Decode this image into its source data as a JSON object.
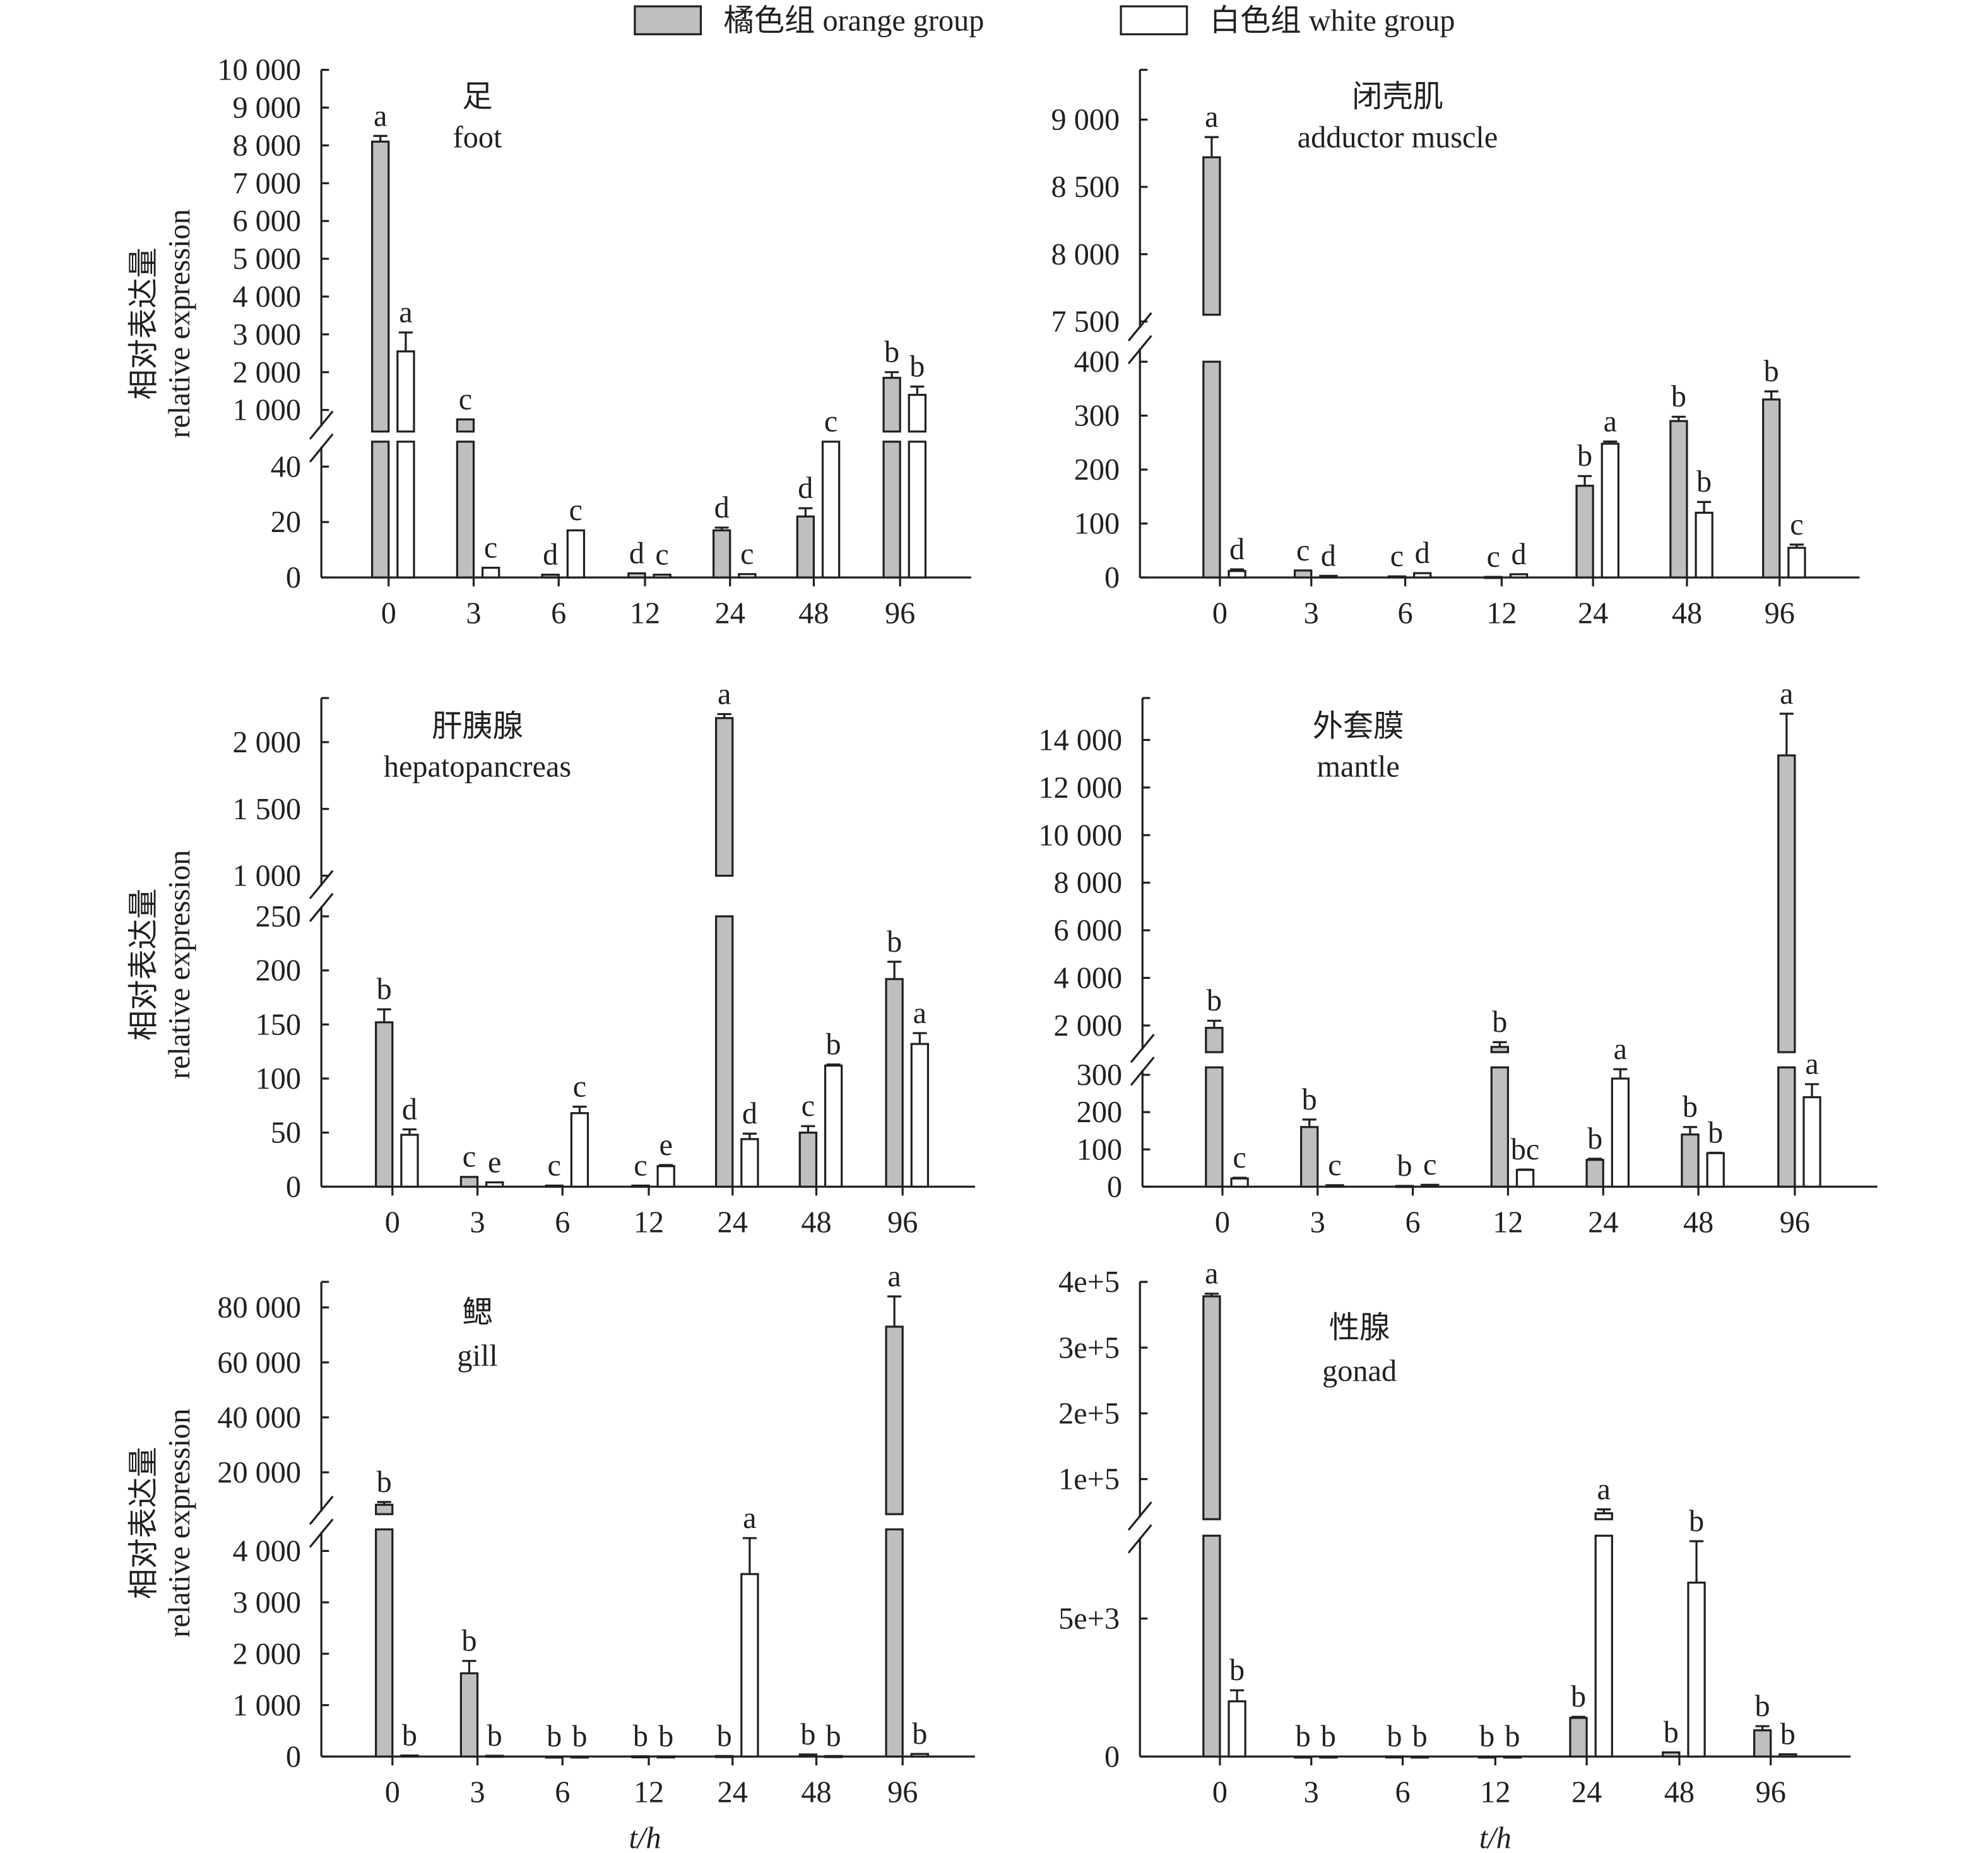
{
  "legend": {
    "orange": "橘色组 orange group",
    "white": "白色组 white group"
  },
  "colors": {
    "orange": "#bfbfbf",
    "white": "#ffffff",
    "ink": "#231f20"
  },
  "ylabel_cn": "相对表达量",
  "ylabel_en": "relative expression",
  "xlabel": "t/h",
  "chart_data": [
    {
      "type": "bar",
      "id": "foot",
      "title_cn": "足",
      "title_en": "foot",
      "categories": [
        "0",
        "3",
        "6",
        "12",
        "24",
        "48",
        "96"
      ],
      "axis_break": true,
      "lower_ylim": [
        0,
        49
      ],
      "upper_ylim": [
        430,
        10000
      ],
      "lower_ticks": [
        {
          "v": 0,
          "label": "0"
        },
        {
          "v": 20,
          "label": "20"
        },
        {
          "v": 40,
          "label": "40"
        }
      ],
      "upper_ticks": [
        {
          "v": 1000,
          "label": "1 000"
        },
        {
          "v": 2000,
          "label": "2 000"
        },
        {
          "v": 3000,
          "label": "3 000"
        },
        {
          "v": 4000,
          "label": "4 000"
        },
        {
          "v": 5000,
          "label": "5 000"
        },
        {
          "v": 6000,
          "label": "6 000"
        },
        {
          "v": 7000,
          "label": "7 000"
        },
        {
          "v": 8000,
          "label": "8 000"
        },
        {
          "v": 9000,
          "label": "9 000"
        },
        {
          "v": 10000,
          "label": "10 000"
        }
      ],
      "series": [
        {
          "name": "orange group",
          "values": [
            8100,
            750,
            1,
            1.5,
            17,
            22,
            1850
          ],
          "errors": [
            150,
            0,
            0,
            0,
            1,
            3,
            150
          ],
          "letters": [
            "a",
            "c",
            "d",
            "d",
            "d",
            "d",
            "b"
          ]
        },
        {
          "name": "white group",
          "values": [
            2550,
            3.5,
            17,
            1,
            1.2,
            49,
            1400
          ],
          "errors": [
            500,
            0,
            0,
            0,
            0,
            0,
            220
          ],
          "letters": [
            "a",
            "c",
            "c",
            "c",
            "c",
            "c",
            "b"
          ]
        }
      ]
    },
    {
      "type": "bar",
      "id": "adductor",
      "title_cn": "闭壳肌",
      "title_en": "adductor muscle",
      "categories": [
        "0",
        "3",
        "6",
        "12",
        "24",
        "48",
        "96"
      ],
      "axis_break": true,
      "lower_ylim": [
        0,
        400
      ],
      "upper_ylim": [
        7550,
        9370
      ],
      "lower_ticks": [
        {
          "v": 0,
          "label": "0"
        },
        {
          "v": 100,
          "label": "100"
        },
        {
          "v": 200,
          "label": "200"
        },
        {
          "v": 300,
          "label": "300"
        },
        {
          "v": 400,
          "label": "400"
        }
      ],
      "upper_ticks": [
        {
          "v": 7500,
          "label": "7 500"
        },
        {
          "v": 8000,
          "label": "8 000"
        },
        {
          "v": 8500,
          "label": "8 500"
        },
        {
          "v": 9000,
          "label": "9 000"
        }
      ],
      "series": [
        {
          "name": "orange group",
          "values": [
            8720,
            13,
            2,
            1,
            170,
            290,
            330
          ],
          "errors": [
            150,
            0,
            0,
            0,
            18,
            8,
            15
          ],
          "letters": [
            "a",
            "c",
            "c",
            "c",
            "b",
            "b",
            "b"
          ]
        },
        {
          "name": "white group",
          "values": [
            12,
            3,
            8,
            6,
            248,
            120,
            55
          ],
          "errors": [
            3,
            0,
            0,
            0,
            4,
            20,
            6
          ],
          "letters": [
            "d",
            "d",
            "d",
            "d",
            "a",
            "b",
            "c"
          ]
        }
      ]
    },
    {
      "type": "bar",
      "id": "hepatopancreas",
      "title_cn": "肝胰腺",
      "title_en": "hepatopancreas",
      "categories": [
        "0",
        "3",
        "6",
        "12",
        "24",
        "48",
        "96"
      ],
      "axis_break": true,
      "lower_ylim": [
        0,
        250
      ],
      "upper_ylim": [
        1000,
        2330
      ],
      "lower_ticks": [
        {
          "v": 0,
          "label": "0"
        },
        {
          "v": 50,
          "label": "50"
        },
        {
          "v": 100,
          "label": "100"
        },
        {
          "v": 150,
          "label": "150"
        },
        {
          "v": 200,
          "label": "200"
        },
        {
          "v": 250,
          "label": "250"
        }
      ],
      "upper_ticks": [
        {
          "v": 1000,
          "label": "1 000"
        },
        {
          "v": 1500,
          "label": "1 500"
        },
        {
          "v": 2000,
          "label": "2 000"
        }
      ],
      "series": [
        {
          "name": "orange group",
          "values": [
            152,
            9,
            1,
            1,
            2180,
            50,
            192
          ],
          "errors": [
            12,
            0,
            0,
            0,
            30,
            6,
            16
          ],
          "letters": [
            "b",
            "c",
            "c",
            "c",
            "a",
            "c",
            "b"
          ]
        },
        {
          "name": "white group",
          "values": [
            48,
            4,
            68,
            19,
            44,
            112,
            132
          ],
          "errors": [
            5,
            0,
            6,
            1,
            5,
            1,
            10
          ],
          "letters": [
            "d",
            "e",
            "c",
            "e",
            "d",
            "b",
            "a"
          ]
        }
      ]
    },
    {
      "type": "bar",
      "id": "mantle",
      "title_cn": "外套膜",
      "title_en": "mantle",
      "categories": [
        "0",
        "3",
        "6",
        "12",
        "24",
        "48",
        "96"
      ],
      "axis_break": true,
      "lower_ylim": [
        0,
        320
      ],
      "upper_ylim": [
        880,
        15760
      ],
      "lower_ticks": [
        {
          "v": 0,
          "label": "0"
        },
        {
          "v": 100,
          "label": "100"
        },
        {
          "v": 200,
          "label": "200"
        },
        {
          "v": 300,
          "label": "300"
        }
      ],
      "upper_ticks": [
        {
          "v": 2000,
          "label": "2 000"
        },
        {
          "v": 4000,
          "label": "4 000"
        },
        {
          "v": 6000,
          "label": "6 000"
        },
        {
          "v": 8000,
          "label": "8 000"
        },
        {
          "v": 10000,
          "label": "10 000"
        },
        {
          "v": 12000,
          "label": "12 000"
        },
        {
          "v": 14000,
          "label": "14 000"
        }
      ],
      "series": [
        {
          "name": "orange group",
          "values": [
            1900,
            160,
            2,
            1100,
            72,
            140,
            13350
          ],
          "errors": [
            300,
            20,
            0,
            200,
            3,
            20,
            1750
          ],
          "letters": [
            "b",
            "b",
            "b",
            "b",
            "b",
            "b",
            "a"
          ]
        },
        {
          "name": "white group",
          "values": [
            22,
            4,
            5,
            45,
            290,
            90,
            240
          ],
          "errors": [
            2,
            0,
            0,
            1,
            25,
            1,
            35
          ],
          "letters": [
            "c",
            "c",
            "c",
            "bc",
            "a",
            "b",
            "a"
          ]
        }
      ]
    },
    {
      "type": "bar",
      "id": "gill",
      "title_cn": "鳃",
      "title_en": "gill",
      "categories": [
        "0",
        "3",
        "6",
        "12",
        "24",
        "48",
        "96"
      ],
      "axis_break": true,
      "lower_ylim": [
        0,
        4420
      ],
      "upper_ylim": [
        4800,
        89300
      ],
      "lower_ticks": [
        {
          "v": 0,
          "label": "0"
        },
        {
          "v": 1000,
          "label": "1 000"
        },
        {
          "v": 2000,
          "label": "2 000"
        },
        {
          "v": 3000,
          "label": "3 000"
        },
        {
          "v": 4000,
          "label": "4 000"
        }
      ],
      "upper_ticks": [
        {
          "v": 20000,
          "label": "20 000"
        },
        {
          "v": 40000,
          "label": "40 000"
        },
        {
          "v": 60000,
          "label": "60 000"
        },
        {
          "v": 80000,
          "label": "80 000"
        }
      ],
      "series": [
        {
          "name": "orange group",
          "values": [
            8200,
            1620,
            1,
            5,
            10,
            40,
            73000
          ],
          "errors": [
            1000,
            240,
            0,
            0,
            0,
            0,
            11000
          ],
          "letters": [
            "b",
            "b",
            "b",
            "b",
            "b",
            "b",
            "a"
          ]
        },
        {
          "name": "white group",
          "values": [
            20,
            15,
            1,
            3,
            3550,
            10,
            50
          ],
          "errors": [
            0,
            0,
            0,
            0,
            700,
            0,
            0
          ],
          "letters": [
            "b",
            "b",
            "b",
            "b",
            "a",
            "b",
            "b"
          ]
        }
      ]
    },
    {
      "type": "bar",
      "id": "gonad",
      "title_cn": "性腺",
      "title_en": "gonad",
      "categories": [
        "0",
        "3",
        "6",
        "12",
        "24",
        "48",
        "96"
      ],
      "axis_break": true,
      "lower_ylim": [
        0,
        8000
      ],
      "upper_ylim": [
        39000,
        400000
      ],
      "lower_ticks": [
        {
          "v": 0,
          "label": "0"
        },
        {
          "v": 5000,
          "label": "5e+3"
        }
      ],
      "upper_ticks": [
        {
          "v": 100000,
          "label": "1e+5"
        },
        {
          "v": 200000,
          "label": "2e+5"
        },
        {
          "v": 300000,
          "label": "3e+5"
        },
        {
          "v": 400000,
          "label": "4e+5"
        }
      ],
      "series": [
        {
          "name": "orange group",
          "values": [
            378000,
            1,
            5,
            1,
            1400,
            150,
            950
          ],
          "errors": [
            4000,
            0,
            0,
            0,
            40,
            0,
            150
          ],
          "letters": [
            "a",
            "b",
            "b",
            "b",
            "b",
            "b",
            "b"
          ]
        },
        {
          "name": "white group",
          "values": [
            2000,
            1,
            1,
            1,
            48000,
            6300,
            80
          ],
          "errors": [
            400,
            0,
            0,
            0,
            6000,
            1500,
            0
          ],
          "letters": [
            "b",
            "b",
            "b",
            "b",
            "a",
            "b",
            "b"
          ]
        }
      ]
    }
  ]
}
